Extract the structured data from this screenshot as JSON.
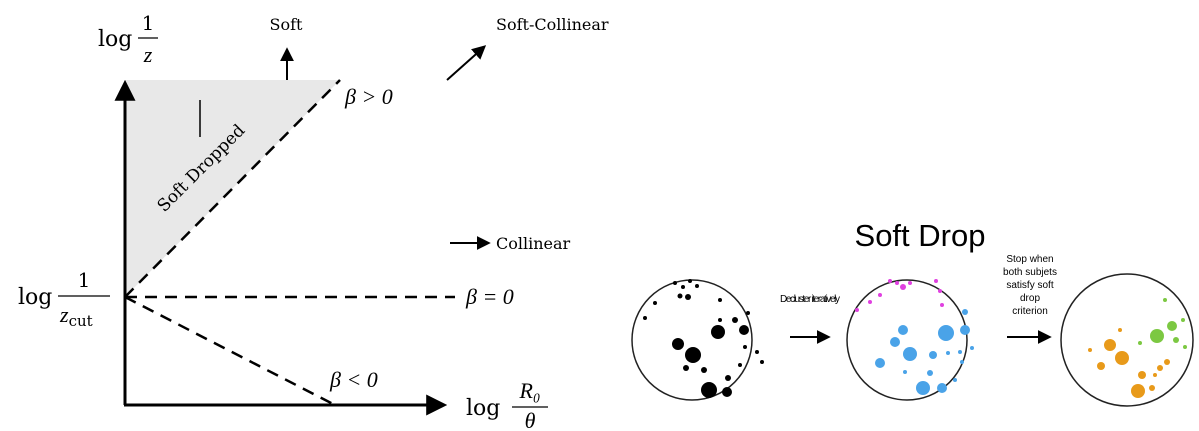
{
  "diagram": {
    "phase_space": {
      "y_axis_label": {
        "prefix": "log",
        "numerator": "1",
        "denominator": "z"
      },
      "x_axis_label": {
        "prefix": "log",
        "numerator": "R₀",
        "denominator": "θ"
      },
      "origin_label": {
        "prefix": "log",
        "numerator": "1",
        "denominator": "z",
        "subscript": "cut"
      },
      "region_label": "Soft Dropped",
      "directions": {
        "soft": "Soft",
        "soft_collinear": "Soft-Collinear",
        "collinear": "Collinear"
      },
      "lines": {
        "positive": "β > 0",
        "zero": "β = 0",
        "negative": "β < 0"
      }
    },
    "jet_cartoon": {
      "title": "Soft Drop",
      "step1": "Decluster iteratively",
      "step2_lines": [
        "Stop when",
        "both subjets",
        "satisfy soft",
        "drop",
        "criterion"
      ]
    }
  }
}
